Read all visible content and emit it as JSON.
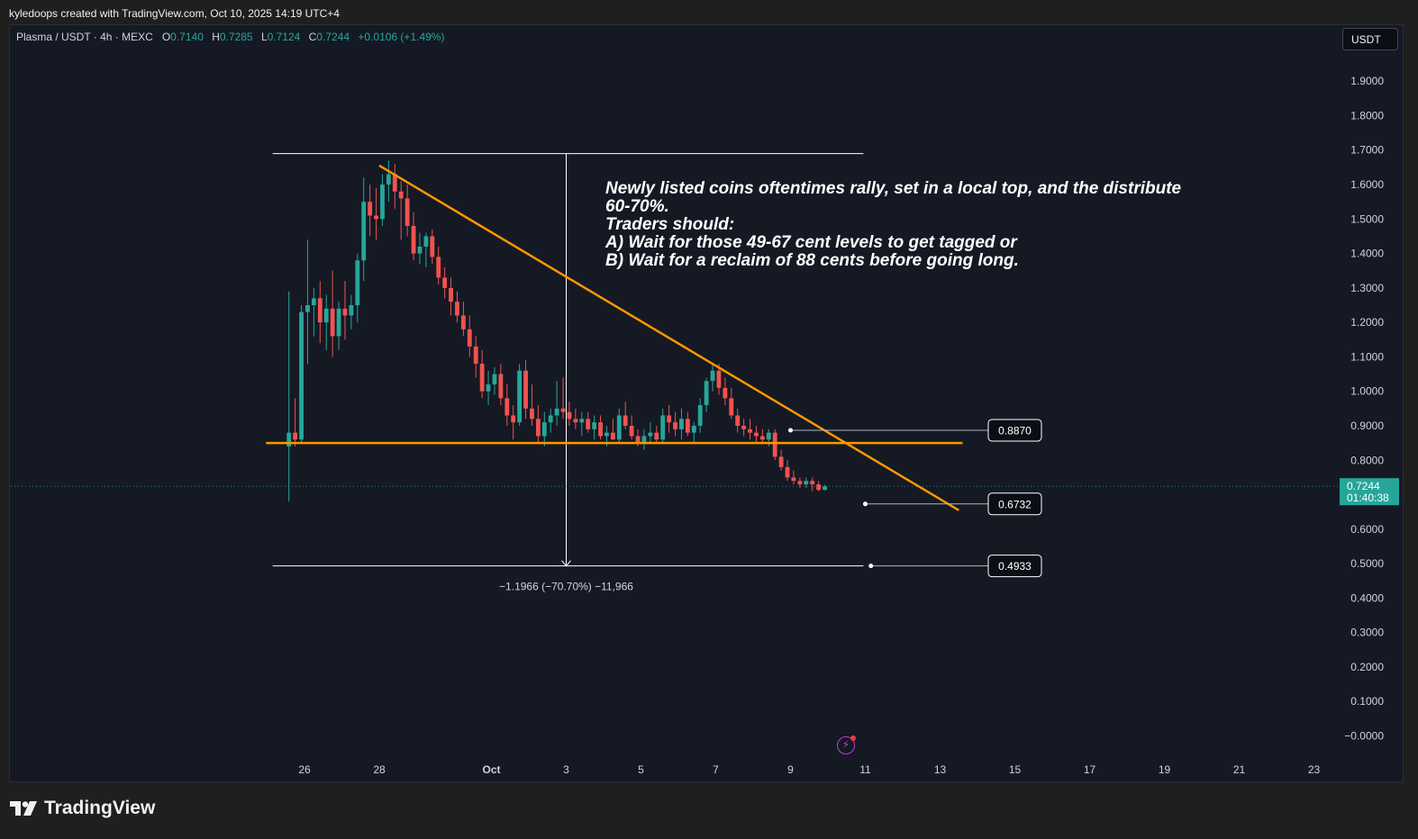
{
  "header": {
    "attribution": "kyledoops created with TradingView.com, Oct 10, 2025 14:19 UTC+4"
  },
  "legend": {
    "symbol": "Plasma / USDT · 4h · MEXC",
    "open_label": "O",
    "open": "0.7140",
    "high_label": "H",
    "high": "0.7285",
    "low_label": "L",
    "low": "0.7124",
    "close_label": "C",
    "close": "0.7244",
    "change": "+0.0106 (+1.49%)"
  },
  "currency_button": "USDT",
  "annotation": {
    "lines": [
      "Newly listed coins oftentimes rally, set in a local top, and the distribute",
      "60-70%.",
      "Traders should:",
      "A) Wait for those 49-67 cent levels to get tagged or",
      "B) Wait for a reclaim of 88 cents before going long."
    ]
  },
  "measure_label": "−1.1966 (−70.70%) −11,966",
  "footer": {
    "brand": "TradingView"
  },
  "colors": {
    "up": "#26a69a",
    "down": "#ef5350",
    "trendline": "#ff9800",
    "background": "#151924",
    "price_tag": "#26a69a"
  },
  "chart_data": {
    "type": "candlestick",
    "y_axis_ticks": [
      "1.9000",
      "1.8000",
      "1.7000",
      "1.6000",
      "1.5000",
      "1.4000",
      "1.3000",
      "1.2000",
      "1.1000",
      "1.0000",
      "0.9000",
      "0.8000",
      "0.7000",
      "0.6000",
      "0.5000",
      "0.4000",
      "0.3000",
      "0.2000",
      "0.1000",
      "−0.0000"
    ],
    "y_tick_values": [
      1.9,
      1.8,
      1.7,
      1.6,
      1.5,
      1.4,
      1.3,
      1.2,
      1.1,
      1.0,
      0.9,
      0.8,
      0.7,
      0.6,
      0.5,
      0.4,
      0.3,
      0.2,
      0.1,
      0.0
    ],
    "x_axis_ticks": [
      {
        "label": "26",
        "day": 0
      },
      {
        "label": "28",
        "day": 2
      },
      {
        "label": "Oct",
        "day": 5
      },
      {
        "label": "3",
        "day": 7
      },
      {
        "label": "5",
        "day": 9
      },
      {
        "label": "7",
        "day": 11
      },
      {
        "label": "9",
        "day": 13
      },
      {
        "label": "11",
        "day": 15
      },
      {
        "label": "13",
        "day": 17
      },
      {
        "label": "15",
        "day": 19
      },
      {
        "label": "17",
        "day": 21
      },
      {
        "label": "19",
        "day": 23
      },
      {
        "label": "21",
        "day": 25
      },
      {
        "label": "23",
        "day": 27
      }
    ],
    "bars_per_day": 6,
    "first_bar_day_offset": -0.5,
    "ohlc": [
      [
        0.84,
        1.29,
        0.68,
        0.88
      ],
      [
        0.88,
        0.98,
        0.84,
        0.86
      ],
      [
        0.86,
        1.25,
        0.85,
        1.23
      ],
      [
        1.23,
        1.44,
        1.08,
        1.25
      ],
      [
        1.25,
        1.3,
        1.16,
        1.27
      ],
      [
        1.27,
        1.32,
        1.14,
        1.2
      ],
      [
        1.2,
        1.28,
        1.12,
        1.24
      ],
      [
        1.24,
        1.35,
        1.1,
        1.16
      ],
      [
        1.16,
        1.26,
        1.12,
        1.24
      ],
      [
        1.24,
        1.32,
        1.15,
        1.22
      ],
      [
        1.22,
        1.28,
        1.18,
        1.25
      ],
      [
        1.25,
        1.4,
        1.2,
        1.38
      ],
      [
        1.38,
        1.62,
        1.32,
        1.55
      ],
      [
        1.55,
        1.6,
        1.45,
        1.51
      ],
      [
        1.51,
        1.59,
        1.44,
        1.5
      ],
      [
        1.5,
        1.63,
        1.48,
        1.6
      ],
      [
        1.6,
        1.67,
        1.55,
        1.63
      ],
      [
        1.63,
        1.66,
        1.53,
        1.58
      ],
      [
        1.58,
        1.61,
        1.44,
        1.56
      ],
      [
        1.56,
        1.6,
        1.45,
        1.48
      ],
      [
        1.48,
        1.52,
        1.38,
        1.4
      ],
      [
        1.4,
        1.46,
        1.37,
        1.42
      ],
      [
        1.42,
        1.46,
        1.36,
        1.45
      ],
      [
        1.45,
        1.47,
        1.37,
        1.39
      ],
      [
        1.39,
        1.42,
        1.31,
        1.33
      ],
      [
        1.33,
        1.36,
        1.27,
        1.3
      ],
      [
        1.3,
        1.33,
        1.22,
        1.26
      ],
      [
        1.26,
        1.29,
        1.2,
        1.22
      ],
      [
        1.22,
        1.26,
        1.16,
        1.18
      ],
      [
        1.18,
        1.22,
        1.1,
        1.13
      ],
      [
        1.13,
        1.16,
        1.04,
        1.08
      ],
      [
        1.08,
        1.12,
        0.98,
        1.0
      ],
      [
        1.0,
        1.06,
        0.96,
        1.02
      ],
      [
        1.02,
        1.07,
        0.99,
        1.05
      ],
      [
        1.05,
        1.08,
        0.96,
        0.98
      ],
      [
        0.98,
        1.02,
        0.9,
        0.93
      ],
      [
        0.93,
        0.96,
        0.86,
        0.91
      ],
      [
        0.91,
        1.08,
        0.9,
        1.06
      ],
      [
        1.06,
        1.09,
        0.92,
        0.95
      ],
      [
        0.95,
        1.02,
        0.9,
        0.92
      ],
      [
        0.92,
        0.96,
        0.85,
        0.87
      ],
      [
        0.87,
        0.94,
        0.84,
        0.91
      ],
      [
        0.91,
        0.95,
        0.88,
        0.93
      ],
      [
        0.93,
        1.03,
        0.9,
        0.95
      ],
      [
        0.95,
        1.04,
        0.92,
        0.94
      ],
      [
        0.94,
        0.97,
        0.9,
        0.92
      ],
      [
        0.92,
        0.95,
        0.89,
        0.91
      ],
      [
        0.91,
        0.94,
        0.87,
        0.92
      ],
      [
        0.92,
        0.94,
        0.88,
        0.89
      ],
      [
        0.89,
        0.93,
        0.86,
        0.91
      ],
      [
        0.91,
        0.93,
        0.86,
        0.87
      ],
      [
        0.87,
        0.9,
        0.84,
        0.88
      ],
      [
        0.88,
        0.92,
        0.86,
        0.86
      ],
      [
        0.86,
        0.95,
        0.85,
        0.93
      ],
      [
        0.93,
        0.97,
        0.89,
        0.9
      ],
      [
        0.9,
        0.93,
        0.86,
        0.87
      ],
      [
        0.87,
        0.89,
        0.84,
        0.85
      ],
      [
        0.85,
        0.89,
        0.83,
        0.87
      ],
      [
        0.87,
        0.91,
        0.85,
        0.88
      ],
      [
        0.88,
        0.9,
        0.85,
        0.86
      ],
      [
        0.86,
        0.95,
        0.85,
        0.93
      ],
      [
        0.93,
        0.96,
        0.88,
        0.91
      ],
      [
        0.91,
        0.94,
        0.87,
        0.89
      ],
      [
        0.89,
        0.95,
        0.86,
        0.92
      ],
      [
        0.92,
        0.94,
        0.87,
        0.88
      ],
      [
        0.88,
        0.91,
        0.85,
        0.9
      ],
      [
        0.9,
        0.98,
        0.88,
        0.96
      ],
      [
        0.96,
        1.04,
        0.94,
        1.03
      ],
      [
        1.03,
        1.08,
        1.0,
        1.06
      ],
      [
        1.06,
        1.08,
        0.99,
        1.01
      ],
      [
        1.01,
        1.04,
        0.96,
        0.98
      ],
      [
        0.98,
        1.01,
        0.92,
        0.93
      ],
      [
        0.93,
        0.95,
        0.88,
        0.9
      ],
      [
        0.9,
        0.92,
        0.87,
        0.89
      ],
      [
        0.89,
        0.92,
        0.86,
        0.88
      ],
      [
        0.88,
        0.9,
        0.85,
        0.87
      ],
      [
        0.87,
        0.89,
        0.85,
        0.86
      ],
      [
        0.86,
        0.89,
        0.84,
        0.88
      ],
      [
        0.88,
        0.89,
        0.8,
        0.81
      ],
      [
        0.81,
        0.83,
        0.77,
        0.78
      ],
      [
        0.78,
        0.8,
        0.74,
        0.75
      ],
      [
        0.75,
        0.77,
        0.73,
        0.74
      ],
      [
        0.74,
        0.75,
        0.72,
        0.73
      ],
      [
        0.73,
        0.75,
        0.72,
        0.74
      ],
      [
        0.74,
        0.75,
        0.71,
        0.73
      ],
      [
        0.73,
        0.74,
        0.71,
        0.714
      ],
      [
        0.714,
        0.7285,
        0.7124,
        0.7244
      ]
    ],
    "last_price": "0.7244",
    "countdown": "01:40:38",
    "levels": [
      {
        "label": "0.8870",
        "value": 0.887
      },
      {
        "label": "0.6732",
        "value": 0.6732
      },
      {
        "label": "0.4933",
        "value": 0.4933
      }
    ],
    "horizontal_support": 0.85,
    "trendline": {
      "from_day": 2,
      "from_value": 1.655,
      "to_day": 17.5,
      "to_value": 0.655
    },
    "measure": {
      "top": 1.69,
      "bottom": 0.4933,
      "day": 7
    }
  }
}
